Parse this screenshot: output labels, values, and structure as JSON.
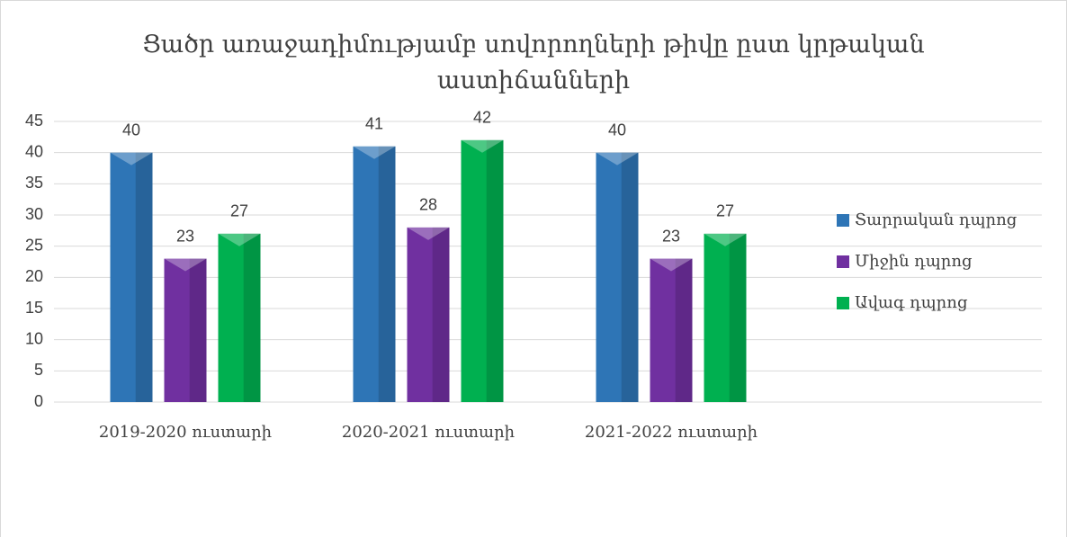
{
  "chart_data": {
    "type": "bar",
    "title": "Ցածր առաջադիմությամբ սովորողների թիվը ըստ կրթական աստիճանների",
    "categories": [
      "2019-2020 ուստարի",
      "2020-2021 ուստարի",
      "2021-2022 ուստարի"
    ],
    "series": [
      {
        "name": "Տարրական դպրոց",
        "color": "#2e75b6",
        "values": [
          40,
          41,
          40
        ]
      },
      {
        "name": "Միջին դպրոց",
        "color": "#7030a0",
        "values": [
          23,
          28,
          23
        ]
      },
      {
        "name": "Ավագ դպրոց",
        "color": "#00b050",
        "values": [
          27,
          42,
          27
        ]
      }
    ],
    "ylim": [
      0,
      45
    ],
    "yticks": [
      0,
      5,
      10,
      15,
      20,
      25,
      30,
      35,
      40,
      45
    ],
    "grid": true,
    "legend": "right"
  }
}
